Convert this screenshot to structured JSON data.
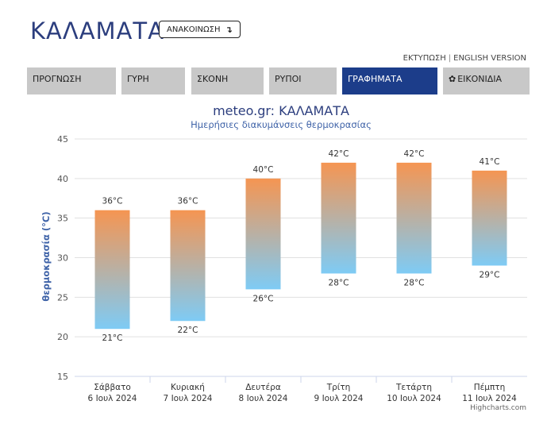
{
  "header": {
    "city": "ΚΑΛΑΜΑΤΑ",
    "announce_label": "ΑΝΑΚΟΙΝΩΣΗ",
    "announce_icon": "arrow-down-right-icon",
    "print_label": "ΕΚΤΥΠΩΣΗ",
    "separator": "|",
    "english_label": "ENGLISH VERSION"
  },
  "nav": {
    "items": [
      {
        "label": "ΠΡΟΓΝΩΣΗ",
        "active": false
      },
      {
        "label": "ΓΥΡΗ",
        "active": false
      },
      {
        "label": "ΣΚΟΝΗ",
        "active": false
      },
      {
        "label": "ΡΥΠΟΙ",
        "active": false
      },
      {
        "label": "ΓΡΑΦΗΜΑΤΑ",
        "active": true
      },
      {
        "label": "ΕΙΚΟΝΙΔΙΑ",
        "active": false,
        "icon": "gear-icon"
      }
    ]
  },
  "chart_data": {
    "type": "bar",
    "title": "meteo.gr: ΚΑΛΑΜΑΤΑ",
    "subtitle": "Ημερήσιες διακυμάνσεις θερμοκρασίας",
    "ylabel": "θερμοκρασία (°C)",
    "ylim": [
      15,
      45
    ],
    "yticks": [
      15,
      20,
      25,
      30,
      35,
      40,
      45
    ],
    "grid": true,
    "unit": "°C",
    "categories": [
      {
        "day": "Σάββατο",
        "date": "6 Ιουλ 2024"
      },
      {
        "day": "Κυριακή",
        "date": "7 Ιουλ 2024"
      },
      {
        "day": "Δευτέρα",
        "date": "8 Ιουλ 2024"
      },
      {
        "day": "Τρίτη",
        "date": "9 Ιουλ 2024"
      },
      {
        "day": "Τετάρτη",
        "date": "10 Ιουλ 2024"
      },
      {
        "day": "Πέμπτη",
        "date": "11 Ιουλ 2024"
      }
    ],
    "min": [
      21,
      22,
      26,
      28,
      28,
      29
    ],
    "max": [
      36,
      36,
      40,
      42,
      42,
      41
    ],
    "colors": {
      "high": "#f59552",
      "low": "#7ecbf5",
      "title": "#2c3e7e",
      "subtitle": "#3f63a8",
      "axis_label": "#3f63a8"
    },
    "credits": "Highcharts.com"
  }
}
